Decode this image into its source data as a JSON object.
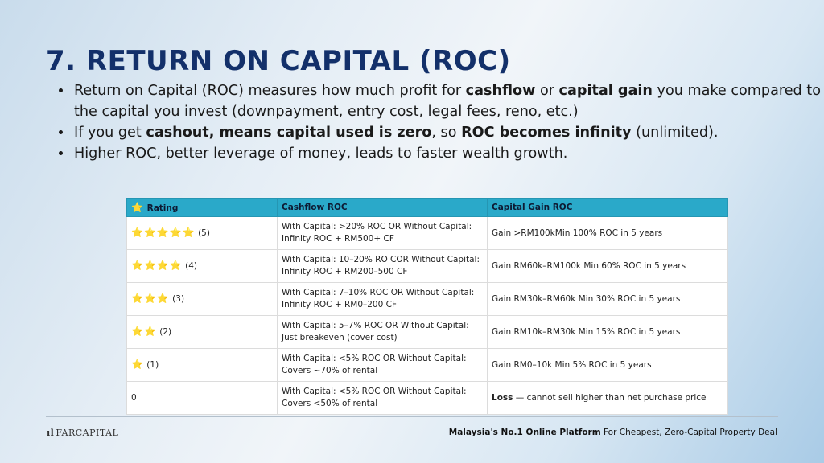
{
  "title": "7. RETURN ON CAPITAL (ROC)",
  "bullets": [
    {
      "parts": [
        "Return on Capital (ROC) measures how much profit for ",
        "cashflow",
        " or ",
        "capital gain",
        " you make compared to the capital you invest (downpayment, entry cost, legal fees, reno, etc.)"
      ]
    },
    {
      "parts": [
        "If you get ",
        "cashout, means capital used is zero",
        ", so ",
        "ROC becomes infinity",
        " (unlimited)."
      ]
    },
    {
      "parts": [
        "Higher ROC, better leverage of money, leads to faster wealth growth."
      ]
    }
  ],
  "table": {
    "header_icon": "⭐",
    "headers": [
      "Rating",
      "Cashflow ROC",
      "Capital Gain ROC"
    ],
    "rows": [
      {
        "stars": "⭐⭐⭐⭐⭐",
        "rating": "(5)",
        "cashflow": "With Capital: >20% ROC OR Without Capital: Infinity ROC + RM500+ CF",
        "gain_bold": "",
        "gain": "Gain >RM100kMin 100% ROC in 5 years"
      },
      {
        "stars": "⭐⭐⭐⭐",
        "rating": "(4)",
        "cashflow": "With Capital: 10–20% RO COR Without Capital: Infinity ROC + RM200–500 CF",
        "gain_bold": "",
        "gain": "Gain RM60k–RM100k Min 60% ROC in 5 years"
      },
      {
        "stars": "⭐⭐⭐",
        "rating": "(3)",
        "cashflow": "With Capital: 7–10% ROC OR Without Capital: Infinity ROC + RM0–200 CF",
        "gain_bold": "",
        "gain": "Gain RM30k–RM60k Min 30% ROC in 5 years"
      },
      {
        "stars": "⭐⭐",
        "rating": "(2)",
        "cashflow": "With Capital: 5–7% ROC OR Without Capital: Just breakeven (cover cost)",
        "gain_bold": "",
        "gain": "Gain RM10k–RM30k Min 15% ROC in 5 years"
      },
      {
        "stars": "⭐",
        "rating": "(1)",
        "cashflow": "With Capital: <5% ROC OR Without Capital: Covers ~70% of rental",
        "gain_bold": "",
        "gain": "Gain RM0–10k Min 5% ROC in 5 years"
      },
      {
        "stars": "",
        "rating": "0",
        "cashflow": "With Capital: <5% ROC OR Without Capital: Covers <50% of rental",
        "gain_bold": "Loss",
        "gain": " — cannot sell higher than net purchase price"
      }
    ]
  },
  "footer": {
    "logo_mark": "ıl",
    "logo_text": "FARCAPITAL",
    "tagline_bold": "Malaysia's No.1 Online Platform",
    "tagline_rest": " For Cheapest, Zero-Capital Property Deal"
  }
}
